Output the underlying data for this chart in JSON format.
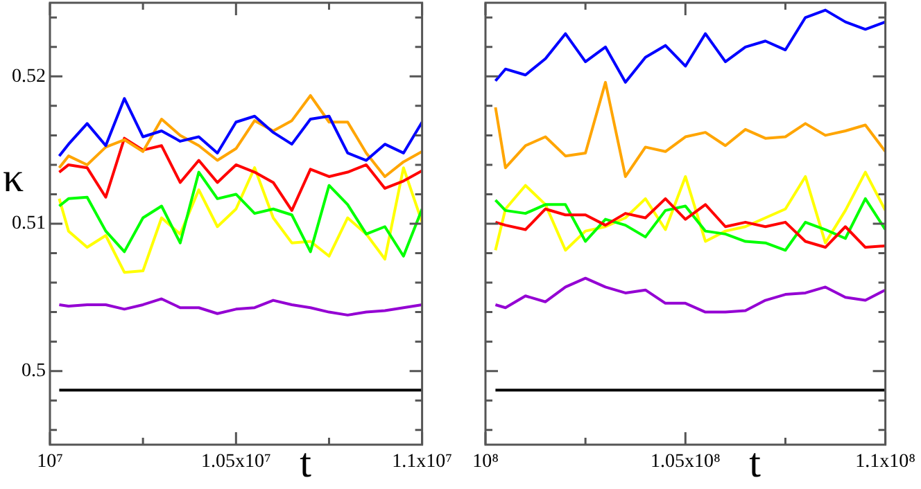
{
  "chart_data": [
    {
      "type": "line",
      "xlabel": "t",
      "ylabel": "κ",
      "legend": false,
      "grid": false,
      "marker": "none",
      "line_style": "solid",
      "x": [
        10025000,
        10050000,
        10100000,
        10150000,
        10200000,
        10250000,
        10300000,
        10350000,
        10400000,
        10450000,
        10500000,
        10550000,
        10600000,
        10650000,
        10700000,
        10750000,
        10800000,
        10850000,
        10900000,
        10950000,
        11000000
      ],
      "xlim": [
        10000000,
        11000000
      ],
      "xticks": [
        {
          "value": 10000000,
          "label": "10⁷"
        },
        {
          "value": 10250000,
          "label": null
        },
        {
          "value": 10500000,
          "label": "1.05x10⁷"
        },
        {
          "value": 10750000,
          "label": null
        },
        {
          "value": 11000000,
          "label": "1.1x10⁷"
        }
      ],
      "ylim": [
        0.495,
        0.525
      ],
      "yticks": [
        {
          "value": 0.496,
          "label": null
        },
        {
          "value": 0.498,
          "label": null
        },
        0.5,
        {
          "value": 0.502,
          "label": null
        },
        {
          "value": 0.504,
          "label": null
        },
        {
          "value": 0.506,
          "label": null
        },
        {
          "value": 0.508,
          "label": null
        },
        0.51,
        {
          "value": 0.512,
          "label": null
        },
        {
          "value": 0.514,
          "label": null
        },
        {
          "value": 0.516,
          "label": null
        },
        {
          "value": 0.518,
          "label": null
        },
        0.52,
        {
          "value": 0.522,
          "label": null
        },
        {
          "value": 0.524,
          "label": null
        }
      ],
      "series": [
        {
          "color": "#0000ff",
          "values": [
            0.5146,
            0.5154,
            0.5168,
            0.5153,
            0.5185,
            0.5159,
            0.5163,
            0.5156,
            0.5159,
            0.5148,
            0.5169,
            0.5173,
            0.5162,
            0.5154,
            0.5171,
            0.5173,
            0.5148,
            0.5143,
            0.5154,
            0.5148,
            0.5169
          ]
        },
        {
          "color": "#ffa500",
          "values": [
            0.5138,
            0.5146,
            0.514,
            0.5152,
            0.5157,
            0.5149,
            0.5171,
            0.516,
            0.5153,
            0.5143,
            0.5151,
            0.517,
            0.5163,
            0.517,
            0.5187,
            0.5169,
            0.5169,
            0.5148,
            0.5132,
            0.5142,
            0.5149
          ]
        },
        {
          "color": "#ff0000",
          "values": [
            0.5135,
            0.514,
            0.5138,
            0.5118,
            0.5158,
            0.515,
            0.5153,
            0.5128,
            0.5143,
            0.5128,
            0.514,
            0.5135,
            0.5128,
            0.5109,
            0.5137,
            0.5132,
            0.5135,
            0.514,
            0.5124,
            0.5129,
            0.5136
          ]
        },
        {
          "color": "#00ff00",
          "values": [
            0.5112,
            0.5117,
            0.5118,
            0.5095,
            0.5081,
            0.5104,
            0.5112,
            0.5087,
            0.5135,
            0.5117,
            0.512,
            0.5107,
            0.511,
            0.5106,
            0.5081,
            0.5126,
            0.5113,
            0.5093,
            0.5098,
            0.5078,
            0.511
          ]
        },
        {
          "color": "#ffff00",
          "values": [
            0.5117,
            0.5095,
            0.5084,
            0.5092,
            0.5067,
            0.5068,
            0.5104,
            0.5093,
            0.5123,
            0.5098,
            0.511,
            0.5138,
            0.5104,
            0.5087,
            0.5088,
            0.5078,
            0.5104,
            0.5093,
            0.5076,
            0.5138,
            0.5101
          ]
        },
        {
          "color": "#9400d3",
          "values": [
            0.5045,
            0.5044,
            0.5045,
            0.5045,
            0.5042,
            0.5045,
            0.5049,
            0.5043,
            0.5043,
            0.5039,
            0.5042,
            0.5043,
            0.5048,
            0.5045,
            0.5043,
            0.504,
            0.5038,
            0.504,
            0.5041,
            0.5043,
            0.5045
          ]
        },
        {
          "color": "#000000",
          "values": [
            0.4987,
            0.4987,
            0.4987,
            0.4987,
            0.4987,
            0.4987,
            0.4987,
            0.4987,
            0.4987,
            0.4987,
            0.4987,
            0.4987,
            0.4987,
            0.4987,
            0.4987,
            0.4987,
            0.4987,
            0.4987,
            0.4987,
            0.4987,
            0.4987
          ]
        }
      ]
    },
    {
      "type": "line",
      "xlabel": "t",
      "legend": false,
      "grid": false,
      "marker": "none",
      "line_style": "solid",
      "tick_labels": "x",
      "x": [
        100250000,
        100500000,
        101000000,
        101500000,
        102000000,
        102500000,
        103000000,
        103500000,
        104000000,
        104500000,
        105000000,
        105500000,
        106000000,
        106500000,
        107000000,
        107500000,
        108000000,
        108500000,
        109000000,
        109500000,
        110000000
      ],
      "xlim": [
        100000000,
        110000000
      ],
      "xticks": [
        {
          "value": 100000000,
          "label": "10⁸"
        },
        {
          "value": 102500000,
          "label": null
        },
        {
          "value": 105000000,
          "label": "1.05x10⁸"
        },
        {
          "value": 107500000,
          "label": null
        },
        {
          "value": 110000000,
          "label": "1.1x10⁸"
        }
      ],
      "ylim": [
        0.495,
        0.525
      ],
      "yticks": [
        {
          "value": 0.496,
          "label": null
        },
        {
          "value": 0.498,
          "label": null
        },
        0.5,
        {
          "value": 0.502,
          "label": null
        },
        {
          "value": 0.504,
          "label": null
        },
        {
          "value": 0.506,
          "label": null
        },
        {
          "value": 0.508,
          "label": null
        },
        0.51,
        {
          "value": 0.512,
          "label": null
        },
        {
          "value": 0.514,
          "label": null
        },
        {
          "value": 0.516,
          "label": null
        },
        {
          "value": 0.518,
          "label": null
        },
        0.52,
        {
          "value": 0.522,
          "label": null
        },
        {
          "value": 0.524,
          "label": null
        }
      ],
      "series": [
        {
          "color": "#0000ff",
          "values": [
            0.5197,
            0.5205,
            0.5201,
            0.5212,
            0.5229,
            0.521,
            0.522,
            0.5196,
            0.5213,
            0.5221,
            0.5207,
            0.5229,
            0.521,
            0.522,
            0.5224,
            0.5218,
            0.524,
            0.5245,
            0.5237,
            0.5232,
            0.5237
          ]
        },
        {
          "color": "#ffa500",
          "values": [
            0.5179,
            0.5138,
            0.5153,
            0.5159,
            0.5146,
            0.5148,
            0.5196,
            0.5132,
            0.5152,
            0.5149,
            0.5159,
            0.5162,
            0.5153,
            0.5164,
            0.5158,
            0.5159,
            0.5168,
            0.516,
            0.5163,
            0.5167,
            0.5149
          ]
        },
        {
          "color": "#ff0000",
          "values": [
            0.5101,
            0.5099,
            0.5096,
            0.511,
            0.5106,
            0.5106,
            0.5099,
            0.5107,
            0.5104,
            0.5117,
            0.5103,
            0.5113,
            0.5098,
            0.5101,
            0.5098,
            0.5101,
            0.5088,
            0.5084,
            0.5098,
            0.5084,
            0.5085
          ]
        },
        {
          "color": "#00ff00",
          "values": [
            0.5116,
            0.5109,
            0.5107,
            0.5113,
            0.5113,
            0.5088,
            0.5103,
            0.5099,
            0.5091,
            0.5109,
            0.5112,
            0.5095,
            0.5093,
            0.5088,
            0.5087,
            0.5082,
            0.5101,
            0.5096,
            0.509,
            0.5117,
            0.5096
          ]
        },
        {
          "color": "#ffff00",
          "values": [
            0.5082,
            0.511,
            0.5126,
            0.5113,
            0.5082,
            0.5095,
            0.5098,
            0.5104,
            0.5117,
            0.5096,
            0.5132,
            0.5088,
            0.5095,
            0.5098,
            0.5104,
            0.511,
            0.5132,
            0.5087,
            0.5109,
            0.5135,
            0.5109
          ]
        },
        {
          "color": "#9400d3",
          "values": [
            0.5045,
            0.5043,
            0.5051,
            0.5047,
            0.5057,
            0.5063,
            0.5057,
            0.5053,
            0.5055,
            0.5046,
            0.5046,
            0.504,
            0.504,
            0.5041,
            0.5048,
            0.5052,
            0.5053,
            0.5057,
            0.505,
            0.5048,
            0.5055
          ]
        },
        {
          "color": "#000000",
          "values": [
            0.4987,
            0.4987,
            0.4987,
            0.4987,
            0.4987,
            0.4987,
            0.4987,
            0.4987,
            0.4987,
            0.4987,
            0.4987,
            0.4987,
            0.4987,
            0.4987,
            0.4987,
            0.4987,
            0.4987,
            0.4987,
            0.4987,
            0.4987,
            0.4987
          ]
        }
      ]
    }
  ]
}
